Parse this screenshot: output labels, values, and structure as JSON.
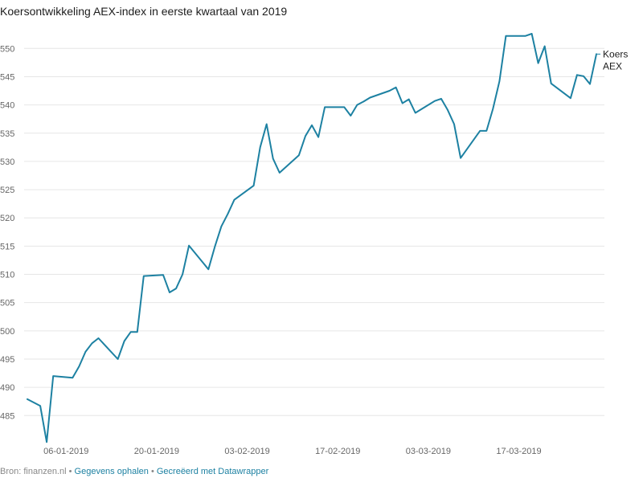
{
  "title": "Koersontwikkeling AEX-index in eerste kwartaal van 2019",
  "footer": {
    "source": "Bron: finanzen.nl",
    "sep1": " • ",
    "get_data": "Gegevens ophalen",
    "sep2": " • ",
    "created_with": "Gecreëerd met Datawrapper"
  },
  "colors": {
    "line": "#1d81a2",
    "grid": "#e6e6e6"
  },
  "chart_data": {
    "type": "line",
    "title": "Koersontwikkeling AEX-index in eerste kwartaal van 2019",
    "xlabel": "",
    "ylabel": "",
    "ylim": [
      480,
      555
    ],
    "yticks": [
      485,
      490,
      495,
      500,
      505,
      510,
      515,
      520,
      525,
      530,
      535,
      540,
      545,
      550
    ],
    "xlim": [
      "2018-12-31",
      "2019-03-28"
    ],
    "xticks": [
      {
        "date": "2019-01-06",
        "label": "06-01-2019"
      },
      {
        "date": "2019-01-20",
        "label": "20-01-2019"
      },
      {
        "date": "2019-02-03",
        "label": "03-02-2019"
      },
      {
        "date": "2019-02-17",
        "label": "17-02-2019"
      },
      {
        "date": "2019-03-03",
        "label": "03-03-2019"
      },
      {
        "date": "2019-03-17",
        "label": "17-03-2019"
      }
    ],
    "grid": true,
    "series": [
      {
        "name": "Koers AEX",
        "label_lines": [
          "Koers",
          "AEX"
        ],
        "points": [
          [
            "2018-12-31",
            487.9
          ],
          [
            "2019-01-02",
            486.7
          ],
          [
            "2019-01-03",
            480.3
          ],
          [
            "2019-01-04",
            492.0
          ],
          [
            "2019-01-07",
            491.7
          ],
          [
            "2019-01-08",
            493.7
          ],
          [
            "2019-01-09",
            496.3
          ],
          [
            "2019-01-10",
            497.8
          ],
          [
            "2019-01-11",
            498.7
          ],
          [
            "2019-01-14",
            495.0
          ],
          [
            "2019-01-15",
            498.2
          ],
          [
            "2019-01-16",
            499.8
          ],
          [
            "2019-01-17",
            499.8
          ],
          [
            "2019-01-18",
            509.7
          ],
          [
            "2019-01-21",
            509.9
          ],
          [
            "2019-01-22",
            506.8
          ],
          [
            "2019-01-23",
            507.5
          ],
          [
            "2019-01-24",
            510.0
          ],
          [
            "2019-01-25",
            515.1
          ],
          [
            "2019-01-28",
            510.9
          ],
          [
            "2019-01-29",
            514.9
          ],
          [
            "2019-01-30",
            518.5
          ],
          [
            "2019-01-31",
            520.7
          ],
          [
            "2019-02-01",
            523.2
          ],
          [
            "2019-02-04",
            525.7
          ],
          [
            "2019-02-05",
            532.5
          ],
          [
            "2019-02-06",
            536.6
          ],
          [
            "2019-02-07",
            530.5
          ],
          [
            "2019-02-08",
            528.0
          ],
          [
            "2019-02-11",
            531.1
          ],
          [
            "2019-02-12",
            534.5
          ],
          [
            "2019-02-13",
            536.4
          ],
          [
            "2019-02-14",
            534.3
          ],
          [
            "2019-02-15",
            539.6
          ],
          [
            "2019-02-18",
            539.6
          ],
          [
            "2019-02-19",
            538.1
          ],
          [
            "2019-02-20",
            540.0
          ],
          [
            "2019-02-21",
            540.6
          ],
          [
            "2019-02-22",
            541.3
          ],
          [
            "2019-02-25",
            542.5
          ],
          [
            "2019-02-26",
            543.1
          ],
          [
            "2019-02-27",
            540.3
          ],
          [
            "2019-02-28",
            541.0
          ],
          [
            "2019-03-01",
            538.6
          ],
          [
            "2019-03-04",
            540.7
          ],
          [
            "2019-03-05",
            541.1
          ],
          [
            "2019-03-06",
            539.1
          ],
          [
            "2019-03-07",
            536.6
          ],
          [
            "2019-03-08",
            530.6
          ],
          [
            "2019-03-11",
            535.4
          ],
          [
            "2019-03-12",
            535.4
          ],
          [
            "2019-03-13",
            539.3
          ],
          [
            "2019-03-14",
            544.2
          ],
          [
            "2019-03-15",
            552.2
          ],
          [
            "2019-03-18",
            552.2
          ],
          [
            "2019-03-19",
            552.6
          ],
          [
            "2019-03-20",
            547.4
          ],
          [
            "2019-03-21",
            550.4
          ],
          [
            "2019-03-22",
            543.8
          ],
          [
            "2019-03-25",
            541.2
          ],
          [
            "2019-03-26",
            545.3
          ],
          [
            "2019-03-27",
            545.1
          ],
          [
            "2019-03-28",
            543.7
          ],
          [
            "2019-03-29",
            549.0
          ]
        ]
      }
    ]
  }
}
